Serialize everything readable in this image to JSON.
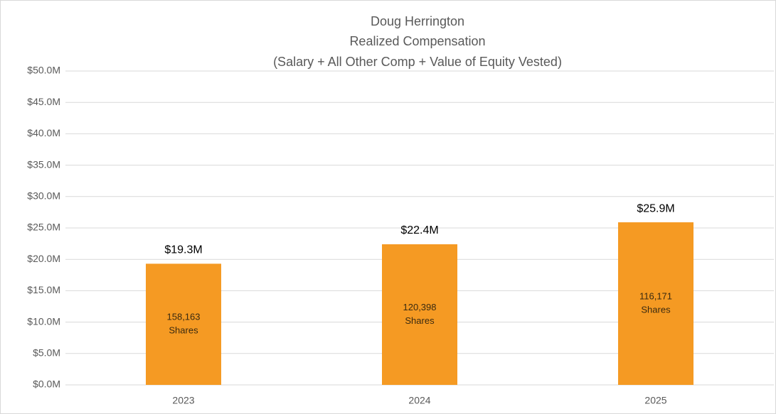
{
  "chart_data": {
    "type": "bar",
    "title": [
      "Doug Herrington",
      "Realized Compensation",
      "(Salary + All Other Comp + Value of Equity Vested)"
    ],
    "categories": [
      "2023",
      "2024",
      "2025"
    ],
    "values": [
      19300000,
      22400000,
      25900000
    ],
    "value_labels": [
      "$19.3M",
      "$22.4M",
      "$25.9M"
    ],
    "annotations": [
      [
        "158,163",
        "Shares"
      ],
      [
        "120,398",
        "Shares"
      ],
      [
        "116,171",
        "Shares"
      ]
    ],
    "color": "#f59a23",
    "ylim": [
      0,
      50000000
    ],
    "yticks": [
      {
        "value": 0,
        "label": "$0.0M"
      },
      {
        "value": 5000000,
        "label": "$5.0M"
      },
      {
        "value": 10000000,
        "label": "$10.0M"
      },
      {
        "value": 15000000,
        "label": "$15.0M"
      },
      {
        "value": 20000000,
        "label": "$20.0M"
      },
      {
        "value": 25000000,
        "label": "$25.0M"
      },
      {
        "value": 30000000,
        "label": "$30.0M"
      },
      {
        "value": 35000000,
        "label": "$35.0M"
      },
      {
        "value": 40000000,
        "label": "$40.0M"
      },
      {
        "value": 45000000,
        "label": "$45.0M"
      },
      {
        "value": 50000000,
        "label": "$50.0M"
      }
    ],
    "grid": true
  }
}
